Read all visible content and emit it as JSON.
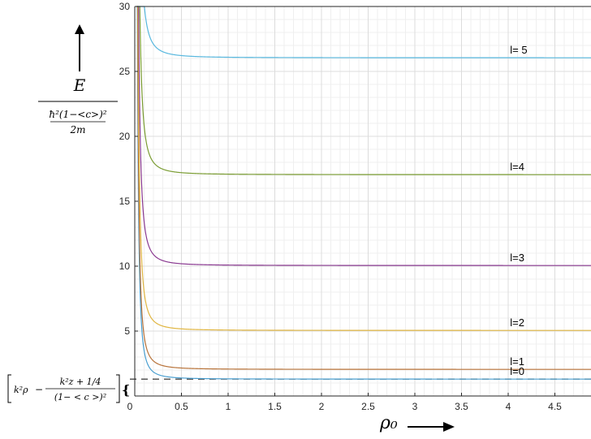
{
  "chart_data": {
    "type": "line",
    "xlim": [
      0,
      5
    ],
    "ylim": [
      0,
      30
    ],
    "x_ticks": [
      "0",
      "0.5",
      "1",
      "1.5",
      "2",
      "2.5",
      "3",
      "3.5",
      "4",
      "4.5"
    ],
    "y_ticks": [
      "30",
      "25",
      "20",
      "15",
      "10",
      "5"
    ],
    "grid": "major-and-minor",
    "series": [
      {
        "name": "l=0",
        "asymptote": 1.3,
        "color": "#4a9fd0"
      },
      {
        "name": "l=1",
        "asymptote": 2.05,
        "color": "#b8733a"
      },
      {
        "name": "l=2",
        "asymptote": 5.05,
        "color": "#e0b540"
      },
      {
        "name": "l=3",
        "asymptote": 10.05,
        "color": "#8a3a91"
      },
      {
        "name": "l=4",
        "asymptote": 17.05,
        "color": "#7a9c32"
      },
      {
        "name": "l= 5",
        "asymptote": 26.05,
        "color": "#57b7de"
      }
    ],
    "dashed_reference_y": 1.3
  },
  "ylabel": {
    "numerator": "E",
    "denominator_top": "ħ²(1−<c>)²",
    "denominator_bottom": "2m"
  },
  "xlabel": "ρ₀",
  "reference_label": {
    "k_rho": "k²ρ",
    "minus": "−",
    "num": "k²z + 1/4",
    "den": "(1− < c >)²"
  }
}
